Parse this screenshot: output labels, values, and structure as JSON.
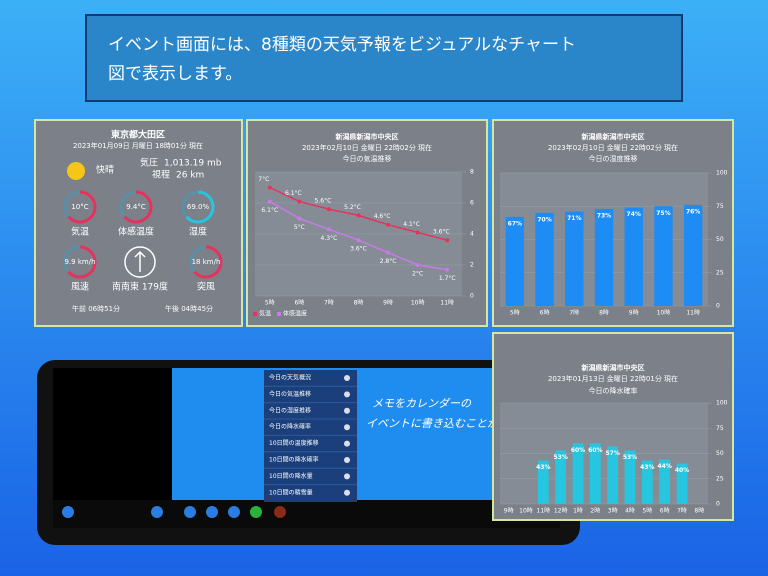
{
  "header": {
    "lines": [
      "イベント画面には、8種類の天気予報をビジュアルなチャート",
      "図で表示します。"
    ]
  },
  "current": {
    "location": "東京都大田区",
    "date": "2023年01月09日 月曜日 18時01分 現在",
    "condition": "快晴",
    "pressure_label": "気圧",
    "pressure": "1,013.19 mb",
    "visibility_label": "視程",
    "visibility": "26 km",
    "gauges": [
      {
        "value": "10°C",
        "label": "気温"
      },
      {
        "value": "9.4°C",
        "label": "体感温度"
      },
      {
        "value": "69.0%",
        "label": "湿度"
      },
      {
        "value": "9.9 km/h",
        "label": "風速"
      },
      {
        "label": "南南東 179度"
      },
      {
        "value": "18 km/h",
        "label": "突風"
      }
    ],
    "sunrise": "午前 06時51分",
    "sunset": "午後 04時45分"
  },
  "menu": {
    "items": [
      "今日の天気概況",
      "今日の気温推移",
      "今日の湿度推移",
      "今日の降水確率",
      "10日間の温度推移",
      "10日間の降水確率",
      "10日間の降水量",
      "10日間の積雪量"
    ]
  },
  "memo": {
    "lines": [
      "メモをカレンダーの",
      "イベントに書き込むことが"
    ]
  },
  "chart_data": [
    {
      "type": "line",
      "location": "新潟県新潟市中央区",
      "date": "2023年02月10日 金曜日 22時02分 現在",
      "title": "今日の気温推移",
      "categories": [
        "5時",
        "6時",
        "7時",
        "8時",
        "9時",
        "10時",
        "11時"
      ],
      "series": [
        {
          "name": "気温",
          "color": "#e8315b",
          "values": [
            7,
            6.1,
            5.6,
            5.2,
            4.6,
            4.1,
            3.6
          ],
          "value_labels": [
            "7°C",
            "6.1°C",
            "5.6°C",
            "5.2°C",
            "4.6°C",
            "4.1°C",
            "3.6°C"
          ]
        },
        {
          "name": "体感温度",
          "color": "#c77be8",
          "values": [
            6.1,
            5,
            4.3,
            3.6,
            2.8,
            2,
            1.7
          ],
          "value_labels": [
            "6.1°C",
            "5°C",
            "4.3°C",
            "3.6°C",
            "2.8°C",
            "2°C",
            "1.7°C"
          ]
        }
      ],
      "ylim": [
        0,
        8
      ],
      "yticks": [
        0,
        2,
        4,
        6,
        8
      ],
      "grid": true,
      "legend": "bottom-left"
    },
    {
      "type": "bar",
      "location": "新潟県新潟市中央区",
      "date": "2023年02月10日 金曜日 22時02分 現在",
      "title": "今日の湿度推移",
      "categories": [
        "5時",
        "6時",
        "7時",
        "8時",
        "9時",
        "10時",
        "11時"
      ],
      "values": [
        67,
        70,
        71,
        73,
        74,
        75,
        76
      ],
      "value_labels": [
        "67%",
        "70%",
        "71%",
        "73%",
        "74%",
        "75%",
        "76%"
      ],
      "color": "#1e8cf5",
      "ylim": [
        0,
        100
      ],
      "yticks": [
        0,
        25,
        50,
        75,
        100
      ],
      "grid": true
    },
    {
      "type": "bar",
      "location": "新潟県新潟市中央区",
      "date": "2023年01月13日 金曜日 22時01分 現在",
      "title": "今日の降水確率",
      "categories": [
        "9時",
        "10時",
        "11時",
        "12時",
        "1時",
        "2時",
        "3時",
        "4時",
        "5時",
        "6時",
        "7時",
        "8時"
      ],
      "values": [
        null,
        null,
        43,
        53,
        60,
        60,
        57,
        53,
        43,
        44,
        40,
        null
      ],
      "value_labels": [
        null,
        null,
        "43%",
        "53%",
        "60%",
        "60%",
        "57%",
        "53%",
        "43%",
        "44%",
        "40%",
        null
      ],
      "color": "#27c6e0",
      "ylim": [
        0,
        100
      ],
      "yticks": [
        0,
        25,
        50,
        75,
        100
      ],
      "grid": true
    }
  ]
}
